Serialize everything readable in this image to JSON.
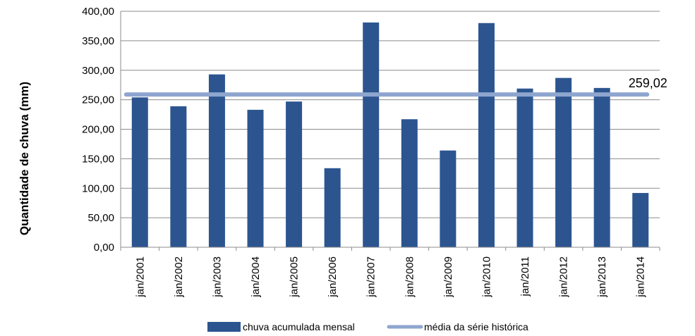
{
  "chart_data": {
    "type": "bar",
    "title": "",
    "xlabel": "",
    "ylabel": "Quantidade de chuva (mm)",
    "ylim": [
      0,
      400
    ],
    "yticks": [
      "0,00",
      "50,00",
      "100,00",
      "150,00",
      "200,00",
      "250,00",
      "300,00",
      "350,00",
      "400,00"
    ],
    "grid": true,
    "legend_position": "bottom",
    "categories": [
      "jan/2001",
      "jan/2002",
      "jan/2003",
      "jan/2004",
      "jan/2005",
      "jan/2006",
      "jan/2007",
      "jan/2008",
      "jan/2009",
      "jan/2010",
      "jan/2011",
      "jan/2012",
      "jan/2013",
      "jan/2014"
    ],
    "series": [
      {
        "name": "chuva acumulada mensal",
        "type": "bar",
        "color": "#2c5590",
        "values": [
          254,
          239,
          293,
          233,
          247,
          134,
          381,
          217,
          164,
          380,
          269,
          287,
          270,
          92
        ]
      },
      {
        "name": "média da série histórica",
        "type": "line",
        "color": "#8ea6cf",
        "value": 259.02
      }
    ],
    "annotations": [
      {
        "text": "259,02",
        "series": "média da série histórica"
      }
    ]
  }
}
